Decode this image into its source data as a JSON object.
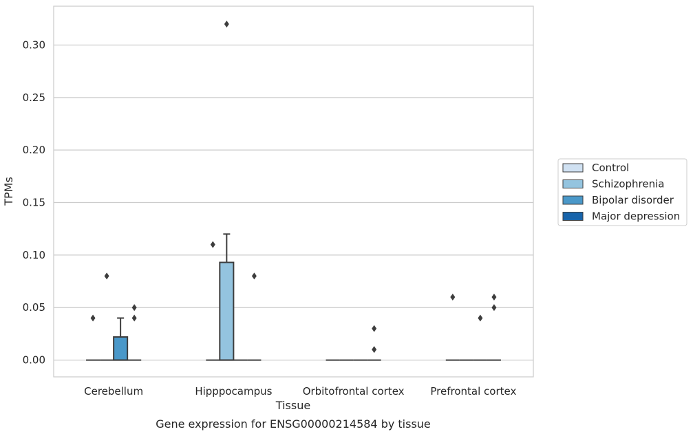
{
  "chart_data": {
    "type": "box",
    "title": "Gene expression for ENSG00000214584 by tissue",
    "xlabel": "Tissue",
    "ylabel": "TPMs",
    "ylim": [
      -0.016,
      0.337
    ],
    "yticks": [
      "0.00",
      "0.05",
      "0.10",
      "0.15",
      "0.20",
      "0.25",
      "0.30"
    ],
    "ytick_values": [
      0,
      0.05,
      0.1,
      0.15,
      0.2,
      0.25,
      0.3
    ],
    "grid": true,
    "legend_position": "right",
    "categories": [
      "Cerebellum",
      "Hipppocampus",
      "Orbitofrontal cortex",
      "Prefrontal cortex"
    ],
    "series": [
      {
        "name": "Control",
        "color": "#d0e1f2",
        "boxes": [
          {
            "q1": 0,
            "median": 0,
            "q3": 0,
            "whisker_low": 0,
            "whisker_high": 0,
            "outliers": [
              0.04
            ]
          },
          {
            "q1": 0,
            "median": 0,
            "q3": 0,
            "whisker_low": 0,
            "whisker_high": 0,
            "outliers": [
              0.11
            ]
          },
          {
            "q1": 0,
            "median": 0,
            "q3": 0,
            "whisker_low": 0,
            "whisker_high": 0,
            "outliers": []
          },
          {
            "q1": 0,
            "median": 0,
            "q3": 0,
            "whisker_low": 0,
            "whisker_high": 0,
            "outliers": [
              0.06
            ]
          }
        ]
      },
      {
        "name": "Schizophrenia",
        "color": "#94c4df",
        "boxes": [
          {
            "q1": 0,
            "median": 0,
            "q3": 0,
            "whisker_low": 0,
            "whisker_high": 0,
            "outliers": [
              0.08
            ]
          },
          {
            "q1": 0,
            "median": 0,
            "q3": 0.093,
            "whisker_low": 0,
            "whisker_high": 0.12,
            "outliers": [
              0.32
            ]
          },
          {
            "q1": 0,
            "median": 0,
            "q3": 0,
            "whisker_low": 0,
            "whisker_high": 0,
            "outliers": []
          },
          {
            "q1": 0,
            "median": 0,
            "q3": 0,
            "whisker_low": 0,
            "whisker_high": 0,
            "outliers": []
          }
        ]
      },
      {
        "name": "Bipolar disorder",
        "color": "#4a98c9",
        "boxes": [
          {
            "q1": 0,
            "median": 0,
            "q3": 0.022,
            "whisker_low": 0,
            "whisker_high": 0.04,
            "outliers": []
          },
          {
            "q1": 0,
            "median": 0,
            "q3": 0,
            "whisker_low": 0,
            "whisker_high": 0,
            "outliers": []
          },
          {
            "q1": 0,
            "median": 0,
            "q3": 0,
            "whisker_low": 0,
            "whisker_high": 0,
            "outliers": []
          },
          {
            "q1": 0,
            "median": 0,
            "q3": 0,
            "whisker_low": 0,
            "whisker_high": 0,
            "outliers": [
              0.04
            ]
          }
        ]
      },
      {
        "name": "Major depression",
        "color": "#1764ab",
        "boxes": [
          {
            "q1": 0,
            "median": 0,
            "q3": 0,
            "whisker_low": 0,
            "whisker_high": 0,
            "outliers": [
              0.04,
              0.05
            ]
          },
          {
            "q1": 0,
            "median": 0,
            "q3": 0,
            "whisker_low": 0,
            "whisker_high": 0,
            "outliers": [
              0.08
            ]
          },
          {
            "q1": 0,
            "median": 0,
            "q3": 0,
            "whisker_low": 0,
            "whisker_high": 0,
            "outliers": [
              0.01,
              0.03
            ]
          },
          {
            "q1": 0,
            "median": 0,
            "q3": 0,
            "whisker_low": 0,
            "whisker_high": 0,
            "outliers": [
              0.05,
              0.06
            ]
          }
        ]
      }
    ]
  }
}
